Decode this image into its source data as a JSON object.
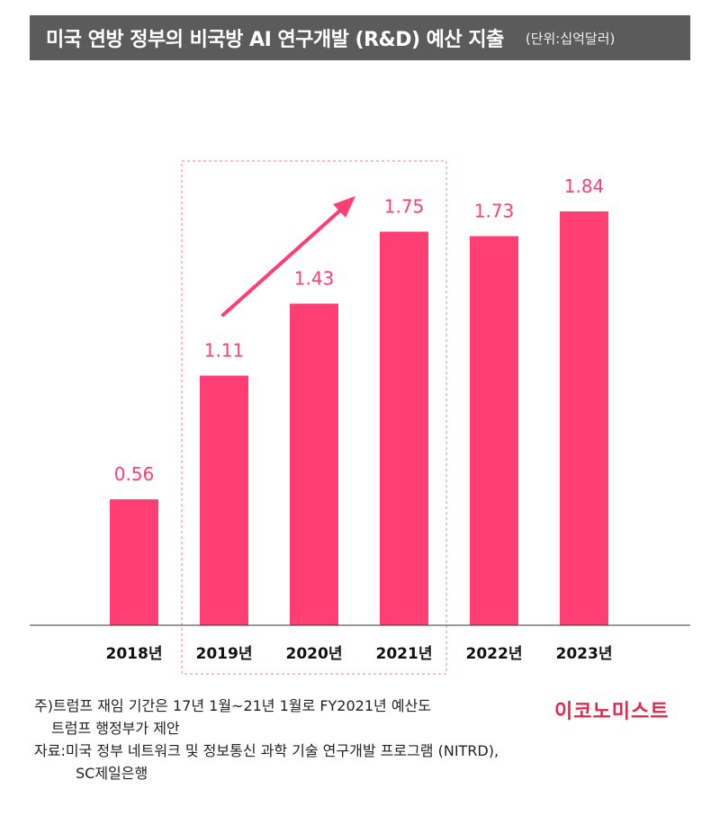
{
  "title": "미국 연방 정부의 비국방 AI 연구개발 (R&D) 예산 지출",
  "unit": "(단위:십억달러)",
  "colors": {
    "bar": "#ff3e73",
    "highlight_box": "#e8869c",
    "title_bg": "#5b5b5b",
    "logo": "#e8264d"
  },
  "chart_data": {
    "type": "bar",
    "title": "미국 연방 정부의 비국방 AI 연구개발 (R&D) 예산 지출",
    "unit": "십억달러",
    "categories": [
      "2018년",
      "2019년",
      "2020년",
      "2021년",
      "2022년",
      "2023년"
    ],
    "values": [
      0.56,
      1.11,
      1.43,
      1.75,
      1.73,
      1.84
    ],
    "data_labels": [
      "0.56",
      "1.11",
      "1.43",
      "1.75",
      "1.73",
      "1.84"
    ],
    "ylim": [
      0,
      2.2
    ],
    "highlight": {
      "categories": [
        "2019년",
        "2020년",
        "2021년"
      ],
      "style": "dashed box with upward arrow"
    },
    "grid": false
  },
  "notes": {
    "line1": "주)트럼프 재임 기간은 17년 1월~21년 1월로 FY2021년 예산도",
    "line2": "트럼프 행정부가 제안",
    "line3": "자료:미국 정부 네트워크 및 정보통신 과학 기술 연구개발 프로그램 (NITRD),",
    "line4": "SC제일은행"
  },
  "logo": "이코노미스트"
}
